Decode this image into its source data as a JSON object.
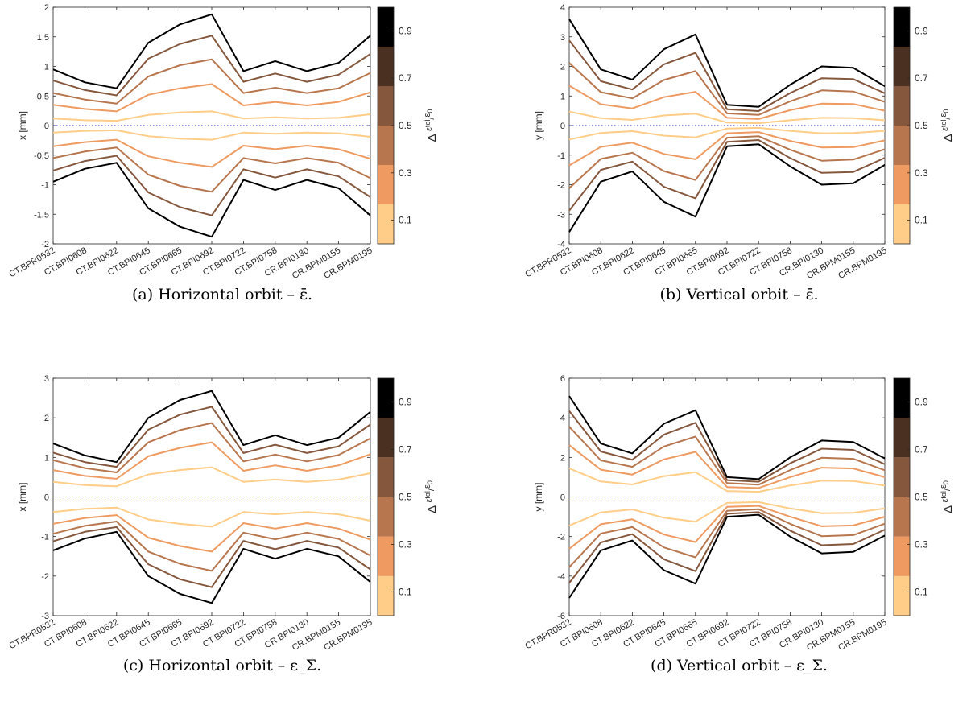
{
  "colors": {
    "levels": [
      "#FFCD87",
      "#EE9A60",
      "#B8764E",
      "#85573D",
      "#4A3020",
      "#000000"
    ],
    "zero_line": "#2323C8",
    "axis": "#262626"
  },
  "colorbar": {
    "ticks": [
      "0.1",
      "0.3",
      "0.5",
      "0.7",
      "0.9"
    ],
    "tick_values": [
      0.1,
      0.3,
      0.5,
      0.7,
      0.9
    ],
    "label": {
      "delta": "Δ",
      "eps1": "ε",
      "tol": "tol",
      "slash": "/",
      "eps2": "ε",
      "zero": "0"
    }
  },
  "chart_data": [
    {
      "type": "line",
      "caption": "(a) Horizontal orbit – ε̄.",
      "ylabel": "x [mm]",
      "ylim": [
        -2,
        2
      ],
      "yticks": [
        "-2",
        "-1.5",
        "-1",
        "-0.5",
        "0",
        "0.5",
        "1",
        "1.5",
        "2"
      ],
      "categories": [
        "CT.BPR0532",
        "CT.BPI0608",
        "CT.BPI0622",
        "CT.BPI0645",
        "CT.BPI0665",
        "CT.BPI0692",
        "CT.BPI0722",
        "CT.BPI0758",
        "CR.BPI0130",
        "CR.BPM0155",
        "CR.BPM0195"
      ],
      "series": [
        {
          "level": 0.1,
          "values": [
            0.12,
            0.09,
            0.08,
            0.18,
            0.22,
            0.24,
            0.12,
            0.14,
            0.12,
            0.13,
            0.19
          ]
        },
        {
          "level": 0.3,
          "values": [
            0.35,
            0.28,
            0.24,
            0.52,
            0.63,
            0.7,
            0.34,
            0.4,
            0.34,
            0.4,
            0.56
          ]
        },
        {
          "level": 0.5,
          "values": [
            0.55,
            0.44,
            0.37,
            0.83,
            1.02,
            1.12,
            0.55,
            0.64,
            0.55,
            0.63,
            0.89
          ]
        },
        {
          "level": 0.7,
          "values": [
            0.76,
            0.6,
            0.51,
            1.13,
            1.38,
            1.52,
            0.74,
            0.88,
            0.74,
            0.86,
            1.21
          ]
        },
        {
          "level": 0.9,
          "values": [
            0.95,
            0.73,
            0.63,
            1.4,
            1.71,
            1.88,
            0.92,
            1.09,
            0.92,
            1.06,
            1.52
          ]
        }
      ]
    },
    {
      "type": "line",
      "caption": "(b) Vertical orbit – ε̄.",
      "ylabel": "y [mm]",
      "ylim": [
        -4,
        4
      ],
      "yticks": [
        "-4",
        "-3",
        "-2",
        "-1",
        "0",
        "1",
        "2",
        "3",
        "4"
      ],
      "categories": [
        "CT.BPR0532",
        "CT.BPI0608",
        "CT.BPI0622",
        "CT.BPI0645",
        "CT.BPI0665",
        "CT.BPI0692",
        "CT.BPI0722",
        "CT.BPI0758",
        "CR.BPI0130",
        "CR.BPM0155",
        "CR.BPM0195"
      ],
      "series": [
        {
          "level": 0.1,
          "values": [
            0.47,
            0.25,
            0.19,
            0.34,
            0.4,
            0.1,
            0.08,
            0.18,
            0.26,
            0.25,
            0.18
          ]
        },
        {
          "level": 0.3,
          "values": [
            1.35,
            0.72,
            0.58,
            0.96,
            1.14,
            0.26,
            0.22,
            0.52,
            0.74,
            0.73,
            0.5
          ]
        },
        {
          "level": 0.5,
          "values": [
            2.12,
            1.13,
            0.92,
            1.54,
            1.84,
            0.41,
            0.36,
            0.82,
            1.19,
            1.15,
            0.8
          ]
        },
        {
          "level": 0.7,
          "values": [
            2.88,
            1.5,
            1.22,
            2.07,
            2.46,
            0.55,
            0.49,
            1.1,
            1.6,
            1.57,
            1.09
          ]
        },
        {
          "level": 0.9,
          "values": [
            3.6,
            1.9,
            1.55,
            2.58,
            3.08,
            0.7,
            0.63,
            1.38,
            2.0,
            1.95,
            1.33
          ]
        }
      ]
    },
    {
      "type": "line",
      "caption": "(c) Horizontal orbit – ε_Σ.",
      "ylabel": "x [mm]",
      "ylim": [
        -3,
        3
      ],
      "yticks": [
        "-3",
        "-2",
        "-1",
        "0",
        "1",
        "2",
        "3"
      ],
      "categories": [
        "CT.BPR0532",
        "CT.BPI0608",
        "CT.BPI0622",
        "CT.BPI0645",
        "CT.BPI0665",
        "CT.BPI0692",
        "CT.BPI0722",
        "CT.BPI0758",
        "CR.BPI0130",
        "CR.BPM0155",
        "CR.BPM0195"
      ],
      "series": [
        {
          "level": 0.1,
          "values": [
            0.38,
            0.3,
            0.27,
            0.57,
            0.68,
            0.75,
            0.38,
            0.44,
            0.38,
            0.44,
            0.6
          ]
        },
        {
          "level": 0.3,
          "values": [
            0.68,
            0.53,
            0.46,
            1.03,
            1.24,
            1.38,
            0.66,
            0.8,
            0.66,
            0.8,
            1.08
          ]
        },
        {
          "level": 0.5,
          "values": [
            0.93,
            0.73,
            0.62,
            1.38,
            1.69,
            1.87,
            0.9,
            1.07,
            0.9,
            1.06,
            1.48
          ]
        },
        {
          "level": 0.7,
          "values": [
            1.12,
            0.88,
            0.76,
            1.7,
            2.08,
            2.28,
            1.11,
            1.32,
            1.11,
            1.28,
            1.83
          ]
        },
        {
          "level": 0.9,
          "values": [
            1.35,
            1.05,
            0.88,
            2.0,
            2.45,
            2.68,
            1.31,
            1.56,
            1.31,
            1.5,
            2.15
          ]
        }
      ]
    },
    {
      "type": "line",
      "caption": "(d) Vertical orbit – ε_Σ.",
      "ylabel": "y [mm]",
      "ylim": [
        -6,
        6
      ],
      "yticks": [
        "-6",
        "-4",
        "-2",
        "0",
        "2",
        "4",
        "6"
      ],
      "categories": [
        "CT.BPR0532",
        "CT.BPI0608",
        "CT.BPI0622",
        "CT.BPI0645",
        "CT.BPI0665",
        "CT.BPI0692",
        "CT.BPI0722",
        "CT.BPI0758",
        "CR.BPI0130",
        "CR.BPM0155",
        "CR.BPM0195"
      ],
      "series": [
        {
          "level": 0.1,
          "values": [
            1.45,
            0.78,
            0.63,
            1.05,
            1.25,
            0.3,
            0.26,
            0.58,
            0.82,
            0.8,
            0.58
          ]
        },
        {
          "level": 0.3,
          "values": [
            2.62,
            1.38,
            1.13,
            1.9,
            2.28,
            0.5,
            0.45,
            1.0,
            1.48,
            1.44,
            1.0
          ]
        },
        {
          "level": 0.5,
          "values": [
            3.55,
            1.85,
            1.52,
            2.55,
            3.05,
            0.7,
            0.62,
            1.36,
            1.98,
            1.93,
            1.35
          ]
        },
        {
          "level": 0.7,
          "values": [
            4.35,
            2.3,
            1.88,
            3.15,
            3.75,
            0.85,
            0.77,
            1.7,
            2.44,
            2.38,
            1.65
          ]
        },
        {
          "level": 0.9,
          "values": [
            5.1,
            2.7,
            2.2,
            3.7,
            4.38,
            1.0,
            0.9,
            2.0,
            2.85,
            2.78,
            1.95
          ]
        }
      ]
    }
  ]
}
